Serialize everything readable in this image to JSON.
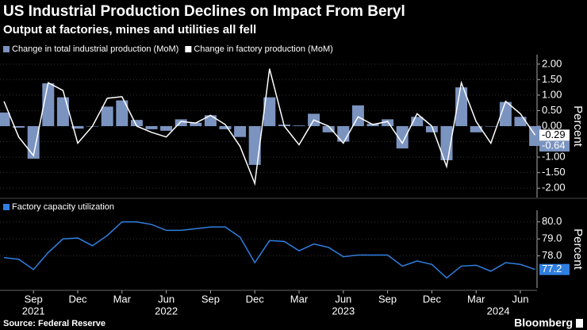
{
  "header": {
    "title": "US Industrial Production Declines on Impact From Beryl",
    "subtitle": "Output at factories, mines and utilities all fell"
  },
  "chart_data": [
    {
      "type": "bar_line",
      "y_axis_label": "Percent",
      "ylim": [
        -2.2,
        2.2
      ],
      "yticks": [
        {
          "value": 2,
          "label": "2.00"
        },
        {
          "value": 1.5,
          "label": "1.50"
        },
        {
          "value": 1,
          "label": "1.00"
        },
        {
          "value": 0.5,
          "label": "0.50"
        },
        {
          "value": 0,
          "label": "0.00"
        },
        {
          "value": -0.5,
          "label": "-0.50"
        },
        {
          "value": -1,
          "label": "-1.00"
        },
        {
          "value": -1.5,
          "label": "-1.50"
        },
        {
          "value": -2,
          "label": "-2.00"
        }
      ],
      "series": [
        {
          "name": "Change in total industrial production (MoM)",
          "color": "#7b93bf",
          "kind": "bar",
          "values": [
            0.44,
            -0.05,
            -1.05,
            1.38,
            0.93,
            -0.08,
            0.0,
            0.63,
            0.83,
            0.2,
            -0.1,
            -0.15,
            0.22,
            0.11,
            0.35,
            -0.1,
            -0.35,
            -1.25,
            0.93,
            0.05,
            0.02,
            0.4,
            -0.2,
            -0.5,
            0.67,
            0.08,
            0.22,
            -0.72,
            0.3,
            -0.2,
            -1.1,
            1.25,
            -0.2,
            0.0,
            0.78,
            0.3,
            -0.64
          ]
        },
        {
          "name": "Change in factory production (MoM)",
          "color": "#ffffff",
          "kind": "line",
          "values": [
            0.8,
            -0.35,
            -0.95,
            1.4,
            1.15,
            -0.55,
            0.0,
            0.9,
            0.95,
            0.0,
            -0.2,
            -0.35,
            0.15,
            0.1,
            0.35,
            0.05,
            -0.65,
            -1.85,
            1.85,
            0.0,
            -0.6,
            0.2,
            0.0,
            -0.55,
            0.3,
            0.05,
            0.15,
            -0.55,
            0.4,
            0.0,
            -1.3,
            1.4,
            0.15,
            -0.55,
            0.8,
            0.4,
            -0.29
          ]
        }
      ]
    },
    {
      "type": "line",
      "y_axis_label": "Percent",
      "ylim": [
        76.3,
        80.5
      ],
      "yticks": [
        {
          "value": 80,
          "label": "80.0"
        },
        {
          "value": 79,
          "label": "79.0"
        },
        {
          "value": 78,
          "label": "78.0"
        }
      ],
      "categories": [
        null,
        null,
        "Sep",
        null,
        null,
        "Dec",
        null,
        null,
        "Mar",
        null,
        null,
        "Jun",
        null,
        null,
        "Sep",
        null,
        null,
        "Dec",
        null,
        null,
        "Mar",
        null,
        null,
        "Jun",
        null,
        null,
        "Sep",
        null,
        null,
        "Dec",
        null,
        null,
        "Mar",
        null,
        null,
        "Jun",
        null
      ],
      "year_labels": [
        "2021",
        "2022",
        "2023",
        "2024"
      ],
      "series": [
        {
          "name": "Factory capacity utilization",
          "color": "#2f7fe0",
          "values": [
            77.9,
            77.8,
            77.2,
            78.2,
            79.0,
            79.05,
            78.6,
            79.2,
            80.0,
            80.0,
            79.85,
            79.5,
            79.5,
            79.6,
            79.7,
            79.7,
            79.1,
            77.6,
            78.9,
            78.85,
            78.3,
            78.7,
            78.5,
            77.95,
            78.05,
            78.05,
            78.05,
            77.4,
            77.7,
            77.5,
            76.7,
            77.4,
            77.45,
            77.1,
            77.6,
            77.5,
            77.2
          ]
        }
      ]
    }
  ],
  "source": "Source: Federal Reserve",
  "logo": "Bloomberg"
}
